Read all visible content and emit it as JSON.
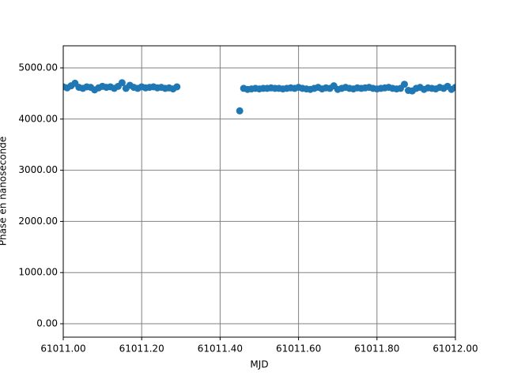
{
  "chart_data": {
    "type": "scatter",
    "xlabel": "MJD",
    "ylabel": "Phase en nanoseconde",
    "series": [
      {
        "color": "#1f77b4",
        "x": [
          61011.0,
          61011.01,
          61011.02,
          61011.03,
          61011.04,
          61011.05,
          61011.06,
          61011.07,
          61011.08,
          61011.09,
          61011.1,
          61011.11,
          61011.12,
          61011.13,
          61011.14,
          61011.15,
          61011.16,
          61011.17,
          61011.18,
          61011.19,
          61011.2,
          61011.21,
          61011.22,
          61011.23,
          61011.24,
          61011.25,
          61011.26,
          61011.27,
          61011.28,
          61011.29,
          61011.45,
          61011.46,
          61011.47,
          61011.48,
          61011.49,
          61011.5,
          61011.51,
          61011.52,
          61011.53,
          61011.54,
          61011.55,
          61011.56,
          61011.57,
          61011.58,
          61011.59,
          61011.6,
          61011.61,
          61011.62,
          61011.63,
          61011.64,
          61011.65,
          61011.66,
          61011.67,
          61011.68,
          61011.69,
          61011.7,
          61011.71,
          61011.72,
          61011.73,
          61011.74,
          61011.75,
          61011.76,
          61011.77,
          61011.78,
          61011.79,
          61011.8,
          61011.81,
          61011.82,
          61011.83,
          61011.84,
          61011.85,
          61011.86,
          61011.87,
          61011.88,
          61011.89,
          61011.9,
          61011.91,
          61011.92,
          61011.93,
          61011.94,
          61011.95,
          61011.96,
          61011.97,
          61011.98,
          61011.99,
          61012.0
        ],
        "values": [
          4630,
          4610,
          4650,
          4700,
          4620,
          4600,
          4630,
          4620,
          4570,
          4610,
          4640,
          4620,
          4630,
          4600,
          4640,
          4710,
          4600,
          4660,
          4620,
          4600,
          4630,
          4610,
          4620,
          4630,
          4610,
          4620,
          4600,
          4610,
          4590,
          4630,
          4160,
          4600,
          4580,
          4590,
          4600,
          4590,
          4600,
          4600,
          4610,
          4600,
          4600,
          4590,
          4600,
          4610,
          4600,
          4620,
          4600,
          4590,
          4580,
          4600,
          4620,
          4590,
          4610,
          4600,
          4650,
          4580,
          4600,
          4620,
          4600,
          4590,
          4610,
          4600,
          4610,
          4620,
          4600,
          4590,
          4600,
          4610,
          4620,
          4600,
          4590,
          4600,
          4680,
          4560,
          4550,
          4600,
          4620,
          4580,
          4610,
          4600,
          4590,
          4620,
          4600,
          4640,
          4580,
          4620
        ]
      }
    ],
    "xlim": [
      61011.0,
      61012.0
    ],
    "xticks": [
      {
        "value": 61011.0,
        "label": "61011.00"
      },
      {
        "value": 61011.2,
        "label": "61011.20"
      },
      {
        "value": 61011.4,
        "label": "61011.40"
      },
      {
        "value": 61011.6,
        "label": "61011.60"
      },
      {
        "value": 61011.8,
        "label": "61011.80"
      },
      {
        "value": 61012.0,
        "label": "61012.00"
      }
    ],
    "ylim": [
      -262,
      5432
    ],
    "yticks": [
      {
        "value": 0,
        "label": "0.00"
      },
      {
        "value": 1000,
        "label": "1000.00"
      },
      {
        "value": 2000,
        "label": "2000.00"
      },
      {
        "value": 3000,
        "label": "3000.00"
      },
      {
        "value": 4000,
        "label": "4000.00"
      },
      {
        "value": 5000,
        "label": "5000.00"
      }
    ],
    "grid": true
  }
}
